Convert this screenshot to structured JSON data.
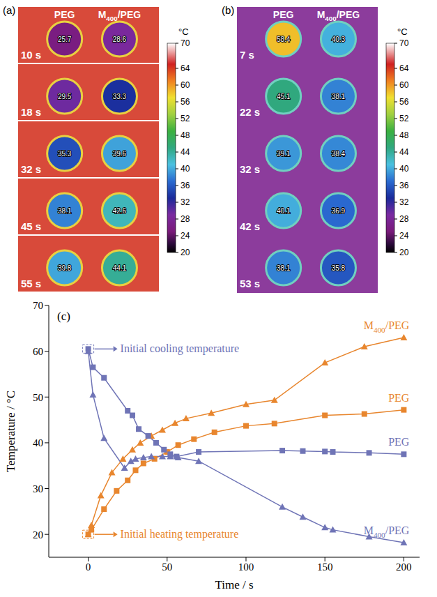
{
  "panels": [
    {
      "label": "(a)",
      "columns": [
        "PEG",
        "M400/PEG"
      ],
      "unit": "°C",
      "colorbar_range": [
        20,
        70
      ],
      "colorbar_ticks": [
        70,
        64,
        60,
        56,
        52,
        48,
        44,
        40,
        36,
        32,
        28,
        24,
        20
      ],
      "rows": [
        {
          "time": "10 s",
          "values": [
            25.7,
            28.6
          ]
        },
        {
          "time": "18 s",
          "values": [
            29.5,
            33.3
          ]
        },
        {
          "time": "32 s",
          "values": [
            35.3,
            39.6
          ]
        },
        {
          "time": "45 s",
          "values": [
            38.1,
            42.6
          ]
        },
        {
          "time": "55 s",
          "values": [
            39.8,
            44.1
          ]
        }
      ]
    },
    {
      "label": "(b)",
      "columns": [
        "PEG",
        "M400/PEG"
      ],
      "unit": "°C",
      "colorbar_range": [
        20,
        70
      ],
      "colorbar_ticks": [
        70,
        64,
        60,
        56,
        52,
        48,
        44,
        40,
        36,
        32,
        28,
        24,
        20
      ],
      "rows": [
        {
          "time": "7 s",
          "values": [
            58.4,
            40.3
          ]
        },
        {
          "time": "22 s",
          "values": [
            45.1,
            38.1
          ]
        },
        {
          "time": "32 s",
          "values": [
            39.1,
            38.4
          ]
        },
        {
          "time": "42 s",
          "values": [
            40.1,
            36.9
          ]
        },
        {
          "time": "53 s",
          "values": [
            38.1,
            35.8
          ]
        }
      ]
    }
  ],
  "chart_data": {
    "type": "line",
    "label": "(c)",
    "x_label": "Time / s",
    "y_label": "Temperature / °C",
    "xlim": [
      -25,
      210
    ],
    "ylim": [
      15,
      70
    ],
    "xticks": [
      0,
      50,
      100,
      150,
      200
    ],
    "yticks": [
      20,
      30,
      40,
      50,
      60,
      70
    ],
    "series": [
      {
        "name": "M400/PEG",
        "color": "#e8862e",
        "marker": "triangle",
        "x": [
          0,
          2,
          8,
          15,
          22,
          28,
          33,
          40,
          47,
          55,
          62,
          78,
          100,
          118,
          150,
          175,
          200
        ],
        "values": [
          20,
          22,
          28.5,
          33.5,
          36.5,
          38.5,
          40,
          41.5,
          42.8,
          44.3,
          45.3,
          46.5,
          48.4,
          49.3,
          57.5,
          61,
          63
        ]
      },
      {
        "name": "PEG",
        "color": "#e8862e",
        "marker": "square",
        "x": [
          0,
          2,
          10,
          18,
          25,
          30,
          35,
          42,
          50,
          57,
          67,
          80,
          100,
          118,
          150,
          175,
          200
        ],
        "values": [
          20,
          21,
          25.5,
          29.5,
          31.8,
          34,
          35.5,
          36.5,
          38,
          39.5,
          40.8,
          42.3,
          43.7,
          44.2,
          46,
          46.3,
          47.2
        ]
      },
      {
        "name": "PEG",
        "color": "#6f74b6",
        "marker": "square",
        "x": [
          0,
          3,
          10,
          25,
          28,
          32,
          38,
          43,
          48,
          52,
          56,
          70,
          123,
          136,
          150,
          155,
          178,
          200
        ],
        "values": [
          60.5,
          56.5,
          54.2,
          47,
          46,
          43,
          41.5,
          40,
          38.5,
          37.5,
          37,
          38,
          38.3,
          38.2,
          38.1,
          38,
          37.8,
          37.5
        ]
      },
      {
        "name": "M400/PEG",
        "color": "#6f74b6",
        "marker": "triangle",
        "x": [
          0,
          3,
          10,
          23,
          27,
          30,
          35,
          40,
          47,
          52,
          57,
          70,
          123,
          136,
          150,
          155,
          178,
          200
        ],
        "values": [
          60,
          50.5,
          41,
          34.5,
          36,
          36.5,
          36.8,
          37,
          37,
          37,
          36.8,
          36,
          26,
          23.8,
          21.5,
          21,
          19.5,
          18.2
        ]
      }
    ],
    "annotations": [
      {
        "text": "Initial cooling temperature",
        "x": 0,
        "y": 60.5,
        "color": "#6f74b6"
      },
      {
        "text": "Initial heating temperature",
        "x": 0,
        "y": 20,
        "color": "#e8862e"
      }
    ]
  }
}
